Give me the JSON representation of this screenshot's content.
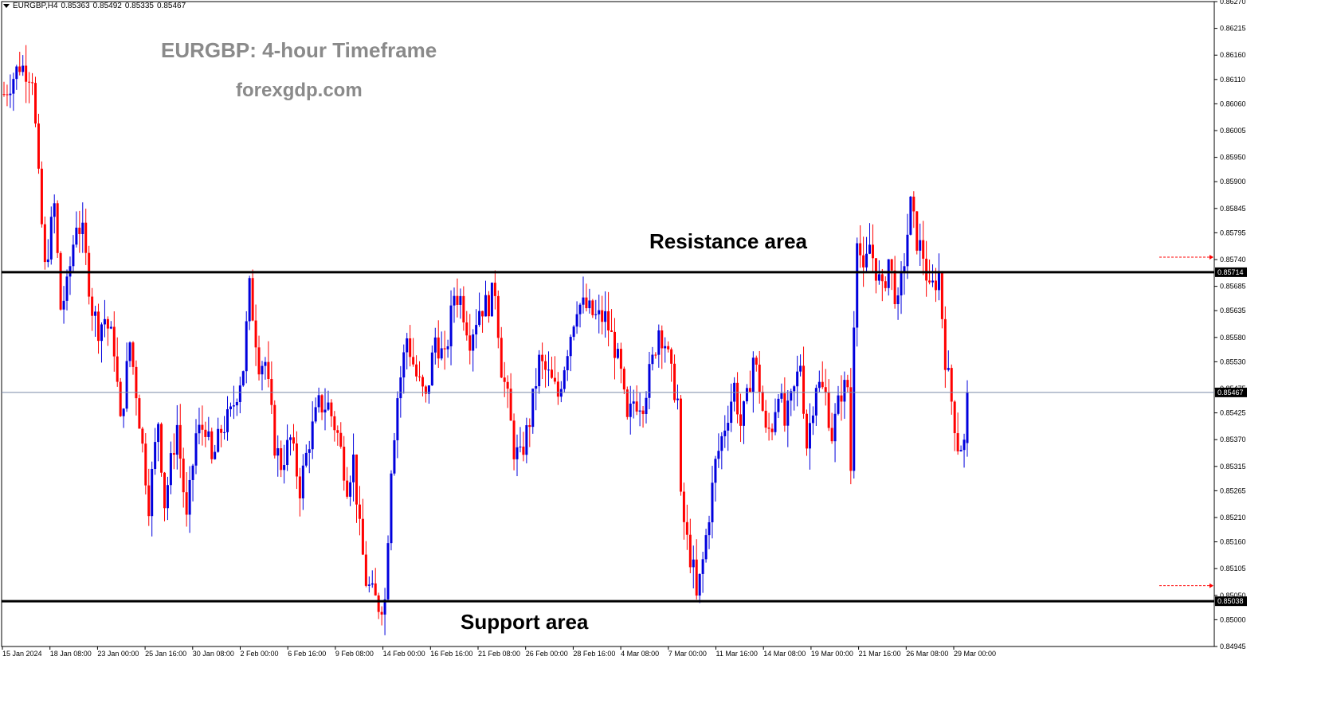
{
  "header": {
    "symbol": "EURGBP,H4",
    "open": "0.85363",
    "high": "0.85492",
    "low": "0.85335",
    "close": "0.85467"
  },
  "annotations": {
    "title": "EURGBP: 4-hour Timeframe",
    "site": "forexgdp.com",
    "resistance_label": "Resistance area",
    "support_label": "Support area"
  },
  "colors": {
    "bull": "#0000dd",
    "bear": "#ff0000",
    "level_line": "#000000",
    "bid_line": "#7a8aa8",
    "axis": "#000000",
    "alert": "#ff0000"
  },
  "chart_data": {
    "type": "candlestick",
    "ylim": [
      0.84945,
      0.8627
    ],
    "y_ticks": [
      "0.86270",
      "0.86215",
      "0.86160",
      "0.86110",
      "0.86060",
      "0.86005",
      "0.85950",
      "0.85900",
      "0.85845",
      "0.85795",
      "0.85740",
      "0.85685",
      "0.85635",
      "0.85580",
      "0.85530",
      "0.85475",
      "0.85425",
      "0.85370",
      "0.85315",
      "0.85265",
      "0.85210",
      "0.85160",
      "0.85105",
      "0.85050",
      "0.85000",
      "0.84945"
    ],
    "x_ticks": [
      "15 Jan 2024",
      "18 Jan 08:00",
      "23 Jan 00:00",
      "25 Jan 16:00",
      "30 Jan 08:00",
      "2 Feb 00:00",
      "6 Feb 16:00",
      "9 Feb 08:00",
      "14 Feb 00:00",
      "16 Feb 16:00",
      "21 Feb 08:00",
      "26 Feb 00:00",
      "28 Feb 16:00",
      "4 Mar 08:00",
      "7 Mar 00:00",
      "11 Mar 16:00",
      "14 Mar 08:00",
      "19 Mar 00:00",
      "21 Mar 16:00",
      "26 Mar 08:00",
      "29 Mar 00:00"
    ],
    "levels": {
      "resistance": 0.85714,
      "support": 0.85038,
      "bid": 0.85467,
      "resistance_label": "0.85714",
      "support_label": "0.85038",
      "bid_label": "0.85467",
      "alert_high": 0.85745,
      "alert_low": 0.8507
    },
    "anchors": [
      [
        0,
        0.8608
      ],
      [
        5,
        0.8614
      ],
      [
        9,
        0.8612
      ],
      [
        11,
        0.859
      ],
      [
        13,
        0.8572
      ],
      [
        16,
        0.8585
      ],
      [
        18,
        0.8564
      ],
      [
        20,
        0.8568
      ],
      [
        23,
        0.8582
      ],
      [
        25,
        0.8579
      ],
      [
        28,
        0.8564
      ],
      [
        30,
        0.856
      ],
      [
        32,
        0.8562
      ],
      [
        35,
        0.8556
      ],
      [
        37,
        0.854
      ],
      [
        40,
        0.8557
      ],
      [
        42,
        0.8547
      ],
      [
        46,
        0.8524
      ],
      [
        49,
        0.8541
      ],
      [
        51,
        0.8524
      ],
      [
        55,
        0.854
      ],
      [
        58,
        0.852
      ],
      [
        61,
        0.8538
      ],
      [
        64,
        0.854
      ],
      [
        66,
        0.8532
      ],
      [
        69,
        0.8539
      ],
      [
        72,
        0.8542
      ],
      [
        76,
        0.8552
      ],
      [
        78,
        0.8568
      ],
      [
        81,
        0.8553
      ],
      [
        83,
        0.8553
      ],
      [
        86,
        0.8536
      ],
      [
        88,
        0.8532
      ],
      [
        91,
        0.8537
      ],
      [
        94,
        0.8527
      ],
      [
        97,
        0.8537
      ],
      [
        100,
        0.8544
      ],
      [
        103,
        0.8544
      ],
      [
        106,
        0.8538
      ],
      [
        109,
        0.8528
      ],
      [
        111,
        0.8533
      ],
      [
        113,
        0.8518
      ],
      [
        115,
        0.8508
      ],
      [
        117,
        0.8505
      ],
      [
        119,
        0.8503
      ],
      [
        121,
        0.8504
      ],
      [
        123,
        0.8532
      ],
      [
        125,
        0.8546
      ],
      [
        128,
        0.8558
      ],
      [
        131,
        0.855
      ],
      [
        134,
        0.8545
      ],
      [
        137,
        0.8558
      ],
      [
        140,
        0.8553
      ],
      [
        143,
        0.8567
      ],
      [
        145,
        0.8566
      ],
      [
        148,
        0.8558
      ],
      [
        151,
        0.8564
      ],
      [
        154,
        0.8565
      ],
      [
        156,
        0.8568
      ],
      [
        158,
        0.8552
      ],
      [
        160,
        0.8545
      ],
      [
        162,
        0.8535
      ],
      [
        164,
        0.8533
      ],
      [
        167,
        0.8541
      ],
      [
        170,
        0.8553
      ],
      [
        173,
        0.855
      ],
      [
        176,
        0.8546
      ],
      [
        179,
        0.8556
      ],
      [
        182,
        0.8565
      ],
      [
        185,
        0.8564
      ],
      [
        188,
        0.8562
      ],
      [
        191,
        0.8562
      ],
      [
        194,
        0.8556
      ],
      [
        196,
        0.855
      ],
      [
        198,
        0.854
      ],
      [
        200,
        0.8545
      ],
      [
        203,
        0.8545
      ],
      [
        206,
        0.8553
      ],
      [
        208,
        0.856
      ],
      [
        210,
        0.8557
      ],
      [
        212,
        0.855
      ],
      [
        214,
        0.8545
      ],
      [
        215,
        0.8524
      ],
      [
        217,
        0.8516
      ],
      [
        219,
        0.851
      ],
      [
        220,
        0.8504
      ],
      [
        222,
        0.8512
      ],
      [
        224,
        0.8522
      ],
      [
        226,
        0.8532
      ],
      [
        229,
        0.854
      ],
      [
        232,
        0.8548
      ],
      [
        234,
        0.854
      ],
      [
        236,
        0.8545
      ],
      [
        238,
        0.8554
      ],
      [
        240,
        0.8548
      ],
      [
        242,
        0.8538
      ],
      [
        244,
        0.854
      ],
      [
        246,
        0.8548
      ],
      [
        248,
        0.854
      ],
      [
        251,
        0.8547
      ],
      [
        253,
        0.8553
      ],
      [
        255,
        0.8536
      ],
      [
        258,
        0.8549
      ],
      [
        261,
        0.8546
      ],
      [
        263,
        0.8538
      ],
      [
        266,
        0.8547
      ],
      [
        268,
        0.8548
      ],
      [
        269,
        0.8531
      ],
      [
        270,
        0.8562
      ],
      [
        271,
        0.858
      ],
      [
        273,
        0.857
      ],
      [
        275,
        0.8577
      ],
      [
        277,
        0.8572
      ],
      [
        279,
        0.8567
      ],
      [
        281,
        0.8574
      ],
      [
        284,
        0.8564
      ],
      [
        286,
        0.8574
      ],
      [
        288,
        0.8585
      ],
      [
        290,
        0.8578
      ],
      [
        292,
        0.8575
      ],
      [
        294,
        0.8567
      ],
      [
        297,
        0.8571
      ],
      [
        299,
        0.8554
      ],
      [
        301,
        0.8545
      ],
      [
        303,
        0.8536
      ],
      [
        305,
        0.8536
      ],
      [
        306,
        0.8546
      ]
    ]
  }
}
